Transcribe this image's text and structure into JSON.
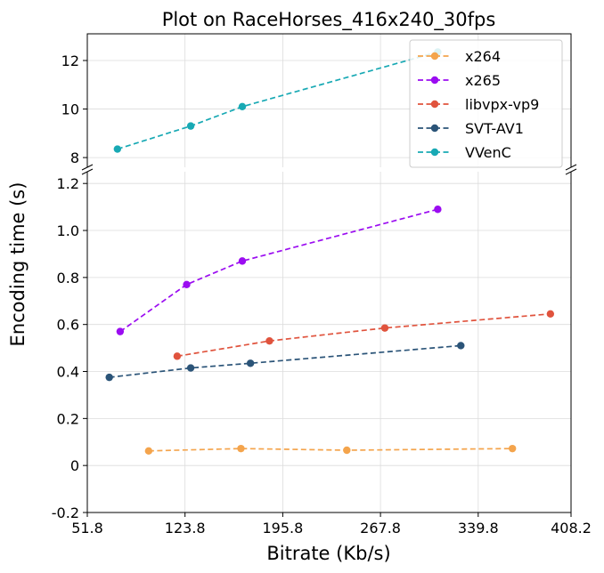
{
  "chart_data": {
    "type": "line",
    "title": "Plot on RaceHorses_416x240_30fps",
    "xlabel": "Bitrate (Kb/s)",
    "ylabel": "Encoding time (s)",
    "xlim": [
      51.8,
      408.2
    ],
    "x_ticks": [
      "51.8",
      "123.8",
      "195.8",
      "267.8",
      "339.8",
      "408.2"
    ],
    "x_tick_values": [
      51.8,
      123.8,
      195.8,
      267.8,
      339.8,
      408.2
    ],
    "upper_panel": {
      "ylim": [
        7.6,
        13.1
      ],
      "y_ticks": [
        "8",
        "10",
        "12"
      ],
      "y_tick_values": [
        8,
        10,
        12
      ]
    },
    "lower_panel": {
      "ylim": [
        -0.2,
        1.25
      ],
      "y_ticks": [
        "-0.2",
        "0",
        "0.2",
        "0.4",
        "0.6",
        "0.8",
        "1.0",
        "1.2"
      ],
      "y_tick_values": [
        -0.2,
        0,
        0.2,
        0.4,
        0.6,
        0.8,
        1.0,
        1.2
      ]
    },
    "grid": true,
    "legend_position": "top-right",
    "broken_y_axis": true,
    "series": [
      {
        "name": "x264",
        "color": "#f4a44c",
        "panel": "lower",
        "x": [
          97,
          165,
          243,
          365
        ],
        "y": [
          0.062,
          0.072,
          0.065,
          0.072
        ]
      },
      {
        "name": "x265",
        "color": "#9b0cf1",
        "panel": "lower",
        "x": [
          76,
          125,
          166,
          310
        ],
        "y": [
          0.57,
          0.77,
          0.87,
          1.09
        ]
      },
      {
        "name": "libvpx-vp9",
        "color": "#e0533d",
        "panel": "lower",
        "x": [
          118,
          186,
          271,
          393
        ],
        "y": [
          0.465,
          0.53,
          0.585,
          0.645
        ]
      },
      {
        "name": "SVT-AV1",
        "color": "#2b5478",
        "panel": "lower",
        "x": [
          68,
          128,
          172,
          327
        ],
        "y": [
          0.375,
          0.415,
          0.435,
          0.51
        ]
      },
      {
        "name": "VVenC",
        "color": "#18a9b4",
        "panel": "upper",
        "x": [
          74,
          128,
          166,
          310
        ],
        "y": [
          8.35,
          9.3,
          10.1,
          12.35
        ]
      }
    ]
  }
}
